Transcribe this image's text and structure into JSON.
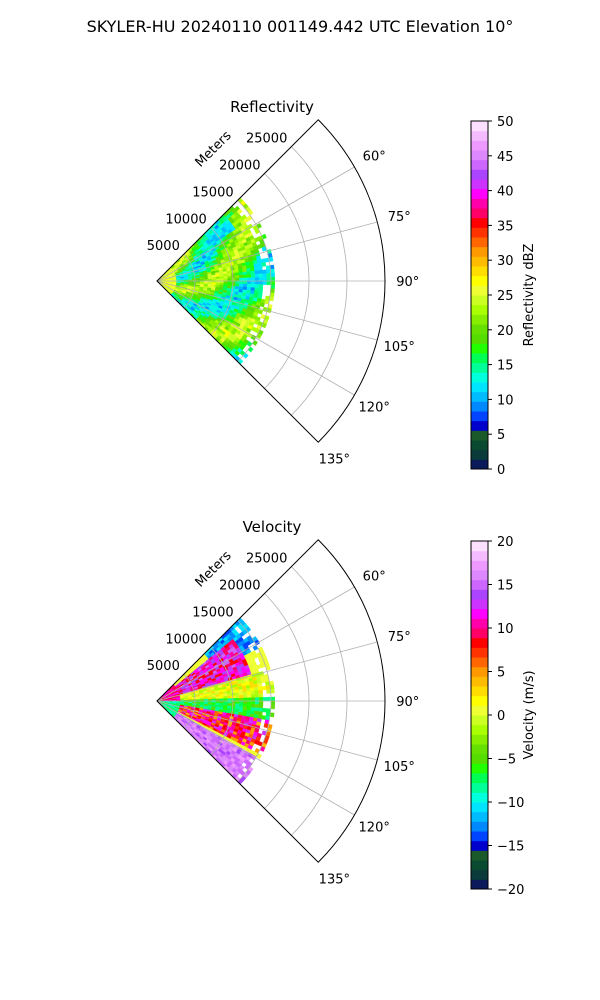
{
  "suptitle": "SKYLER-HU  20240110  001149.442 UTC Elevation 10°",
  "chart_data": [
    {
      "type": "heatmap",
      "title": "Reflectivity",
      "projection": "polar-sector",
      "theta_ticks": [
        "60°",
        "75°",
        "90°",
        "105°",
        "120°",
        "135°"
      ],
      "theta_values": [
        60,
        75,
        90,
        105,
        120,
        135
      ],
      "theta_range": [
        45,
        135
      ],
      "r_label": "Meters",
      "r_ticks": [
        "5000",
        "10000",
        "15000",
        "20000",
        "25000"
      ],
      "r_values": [
        5000,
        10000,
        15000,
        20000,
        25000
      ],
      "rlim": [
        0,
        30000
      ],
      "data_extent_r": [
        0,
        15500
      ],
      "grid": true,
      "colorbar": {
        "label": "Reflectivity dBZ",
        "range": [
          0,
          50
        ],
        "ticks": [
          "0",
          "5",
          "10",
          "15",
          "20",
          "25",
          "30",
          "35",
          "40",
          "45",
          "50"
        ],
        "tick_values": [
          0,
          5,
          10,
          15,
          20,
          25,
          30,
          35,
          40,
          45,
          50
        ],
        "colors": [
          "#0a1a5a",
          "#0a3a3a",
          "#0a4a30",
          "#1a5a2a",
          "#0000cc",
          "#0044ff",
          "#0088ff",
          "#00bbff",
          "#00e5ff",
          "#00ffdd",
          "#00ff99",
          "#00ff55",
          "#22ff00",
          "#55dd00",
          "#66e000",
          "#88ee00",
          "#aaff00",
          "#ccff22",
          "#eeff33",
          "#ffff00",
          "#ffdd00",
          "#ffbb00",
          "#ff9900",
          "#ff6600",
          "#ff3300",
          "#ff0000",
          "#ff0066",
          "#ff00aa",
          "#ff00ff",
          "#cc33ff",
          "#aa44ff",
          "#cc66ff",
          "#dd88ff",
          "#ee99ff",
          "#f5bbff",
          "#fbe0ff"
        ]
      },
      "field_summary": [
        {
          "theta_range": [
            45,
            135
          ],
          "r_range": [
            0,
            15500
          ],
          "dBZ_range": [
            15,
            27
          ],
          "dominant": "green-yellow"
        },
        {
          "theta_range": [
            48,
            56
          ],
          "r_range": [
            9000,
            12500
          ],
          "dBZ_range": [
            10,
            14
          ],
          "note": "cyan echo"
        }
      ]
    },
    {
      "type": "heatmap",
      "title": "Velocity",
      "projection": "polar-sector",
      "theta_ticks": [
        "60°",
        "75°",
        "90°",
        "105°",
        "120°",
        "135°"
      ],
      "theta_values": [
        60,
        75,
        90,
        105,
        120,
        135
      ],
      "theta_range": [
        45,
        135
      ],
      "r_label": "Meters",
      "r_ticks": [
        "5000",
        "10000",
        "15000",
        "20000",
        "25000"
      ],
      "r_values": [
        5000,
        10000,
        15000,
        20000,
        25000
      ],
      "rlim": [
        0,
        30000
      ],
      "data_extent_r": [
        0,
        15500
      ],
      "grid": true,
      "colorbar": {
        "label": "Velocity (m/s)",
        "range": [
          -20,
          20
        ],
        "ticks": [
          "−20",
          "−15",
          "−10",
          "−5",
          "0",
          "5",
          "10",
          "15",
          "20"
        ],
        "tick_values": [
          -20,
          -15,
          -10,
          -5,
          0,
          5,
          10,
          15,
          20
        ],
        "colors": [
          "#0a1a5a",
          "#0a3a3a",
          "#0a4a30",
          "#1a5a2a",
          "#0000cc",
          "#0044ff",
          "#0088ff",
          "#00bbff",
          "#00e5ff",
          "#00ffdd",
          "#00ff99",
          "#00ff55",
          "#22ff00",
          "#55dd00",
          "#66e000",
          "#88ee00",
          "#aaff00",
          "#ccff22",
          "#eeff33",
          "#ffff00",
          "#ffdd00",
          "#ffbb00",
          "#ff9900",
          "#ff6600",
          "#ff3300",
          "#ff0000",
          "#ff0066",
          "#ff00aa",
          "#ff00ff",
          "#cc33ff",
          "#aa44ff",
          "#cc66ff",
          "#dd88ff",
          "#ee99ff",
          "#f5bbff",
          "#fbe0ff"
        ]
      },
      "field_summary": [
        {
          "theta_range": [
            45,
            62
          ],
          "r_range": [
            9000,
            15500
          ],
          "vel_range": [
            -14,
            -10
          ],
          "dominant": "cyan"
        },
        {
          "theta_range": [
            50,
            80
          ],
          "r_range": [
            3000,
            13000
          ],
          "vel_range": [
            8,
            15
          ],
          "dominant": "magenta-red"
        },
        {
          "theta_range": [
            75,
            95
          ],
          "r_range": [
            3000,
            15500
          ],
          "vel_range": [
            -2,
            3
          ],
          "dominant": "yellow"
        },
        {
          "theta_range": [
            88,
            105
          ],
          "r_range": [
            3000,
            15500
          ],
          "vel_range": [
            -9,
            -4
          ],
          "dominant": "green"
        },
        {
          "theta_range": [
            100,
            118
          ],
          "r_range": [
            3000,
            15500
          ],
          "vel_range": [
            4,
            13
          ],
          "dominant": "orange-red"
        },
        {
          "theta_range": [
            120,
            135
          ],
          "r_range": [
            3000,
            15500
          ],
          "vel_range": [
            14,
            17
          ],
          "dominant": "violet"
        }
      ]
    }
  ]
}
